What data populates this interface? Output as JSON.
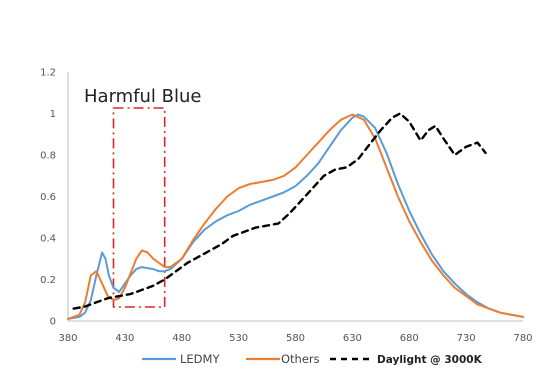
{
  "chart_data": {
    "type": "line",
    "annotation": "Harmful Blue",
    "highlight_range": [
      420,
      465
    ],
    "xlim": [
      380,
      780
    ],
    "ylim": [
      0,
      1.2
    ],
    "xticks": [
      380,
      430,
      480,
      530,
      580,
      630,
      680,
      730,
      780
    ],
    "yticks": [
      0,
      0.2,
      0.4,
      0.6,
      0.8,
      1,
      1.2
    ],
    "grid": false,
    "legend_position": "bottom",
    "series": [
      {
        "name": "LEDMY",
        "color": "#5b9bd5",
        "style": "solid",
        "x": [
          380,
          390,
          395,
          400,
          405,
          410,
          413,
          416,
          420,
          425,
          430,
          435,
          440,
          445,
          450,
          455,
          460,
          465,
          470,
          480,
          490,
          500,
          510,
          520,
          530,
          540,
          550,
          560,
          570,
          580,
          590,
          600,
          610,
          620,
          630,
          635,
          640,
          650,
          660,
          670,
          680,
          690,
          700,
          710,
          720,
          730,
          740,
          750,
          760,
          770,
          780
        ],
        "y": [
          0.01,
          0.02,
          0.04,
          0.1,
          0.22,
          0.33,
          0.3,
          0.22,
          0.16,
          0.14,
          0.18,
          0.22,
          0.25,
          0.26,
          0.255,
          0.25,
          0.24,
          0.24,
          0.25,
          0.3,
          0.38,
          0.44,
          0.48,
          0.51,
          0.53,
          0.56,
          0.58,
          0.6,
          0.62,
          0.65,
          0.7,
          0.76,
          0.84,
          0.92,
          0.98,
          0.995,
          0.985,
          0.93,
          0.81,
          0.66,
          0.53,
          0.42,
          0.32,
          0.24,
          0.18,
          0.13,
          0.09,
          0.06,
          0.04,
          0.03,
          0.02
        ]
      },
      {
        "name": "Others",
        "color": "#ed7d31",
        "style": "solid",
        "x": [
          380,
          390,
          395,
          400,
          405,
          410,
          415,
          420,
          425,
          430,
          435,
          440,
          445,
          450,
          455,
          460,
          465,
          470,
          480,
          490,
          500,
          510,
          520,
          530,
          540,
          550,
          560,
          570,
          580,
          590,
          600,
          610,
          620,
          630,
          640,
          650,
          660,
          670,
          680,
          690,
          700,
          710,
          720,
          730,
          740,
          750,
          760,
          770,
          780
        ],
        "y": [
          0.01,
          0.03,
          0.09,
          0.22,
          0.24,
          0.18,
          0.12,
          0.1,
          0.11,
          0.16,
          0.23,
          0.3,
          0.34,
          0.33,
          0.3,
          0.28,
          0.26,
          0.26,
          0.3,
          0.39,
          0.47,
          0.54,
          0.6,
          0.64,
          0.66,
          0.67,
          0.68,
          0.7,
          0.74,
          0.8,
          0.86,
          0.92,
          0.97,
          0.995,
          0.97,
          0.88,
          0.74,
          0.6,
          0.48,
          0.38,
          0.29,
          0.22,
          0.16,
          0.12,
          0.08,
          0.06,
          0.04,
          0.03,
          0.02
        ]
      },
      {
        "name": "Daylight @ 3000K",
        "color": "#000000",
        "style": "dashed",
        "x": [
          385,
          395,
          405,
          415,
          425,
          435,
          445,
          455,
          465,
          475,
          485,
          495,
          505,
          515,
          525,
          535,
          545,
          555,
          565,
          575,
          585,
          595,
          605,
          615,
          625,
          635,
          645,
          655,
          665,
          672,
          680,
          690,
          697,
          703,
          710,
          720,
          730,
          740,
          747
        ],
        "y": [
          0.06,
          0.07,
          0.09,
          0.11,
          0.12,
          0.13,
          0.15,
          0.17,
          0.2,
          0.24,
          0.28,
          0.31,
          0.34,
          0.37,
          0.41,
          0.43,
          0.45,
          0.46,
          0.47,
          0.52,
          0.58,
          0.64,
          0.7,
          0.73,
          0.74,
          0.78,
          0.85,
          0.92,
          0.98,
          1.0,
          0.96,
          0.87,
          0.92,
          0.94,
          0.88,
          0.8,
          0.84,
          0.86,
          0.81
        ]
      }
    ]
  }
}
